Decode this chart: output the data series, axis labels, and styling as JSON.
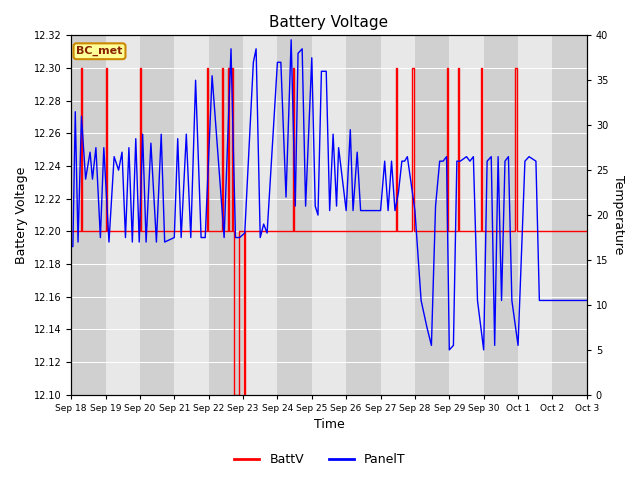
{
  "title": "Battery Voltage",
  "xlabel": "Time",
  "ylabel_left": "Battery Voltage",
  "ylabel_right": "Temperature",
  "ylim_left": [
    12.1,
    12.32
  ],
  "ylim_right": [
    0,
    40
  ],
  "background_color": "#ffffff",
  "band_colors": [
    "#d0d0d0",
    "#e8e8e8"
  ],
  "grid_color": "#ffffff",
  "box_label": "BC_met",
  "box_facecolor": "#ffff99",
  "box_edgecolor": "#cc8800",
  "box_textcolor": "#882200",
  "legend_items": [
    "BattV",
    "PanelT"
  ],
  "batt_color": "#ff0000",
  "panel_color": "#0000ff",
  "x_tick_labels": [
    "Sep 18",
    "Sep 19",
    "Sep 20",
    "Sep 21",
    "Sep 22",
    "Sep 23",
    "Sep 24",
    "Sep 25",
    "Sep 26",
    "Sep 27",
    "Sep 28",
    "Sep 29",
    "Sep 30",
    "Oct 1",
    "Oct 2",
    "Oct 3"
  ],
  "batt_data": [
    [
      18.0,
      12.2
    ],
    [
      18.0,
      12.2
    ],
    [
      18.28,
      12.2
    ],
    [
      18.28,
      12.3
    ],
    [
      18.32,
      12.3
    ],
    [
      18.32,
      12.2
    ],
    [
      19.0,
      12.2
    ],
    [
      19.0,
      12.3
    ],
    [
      19.04,
      12.3
    ],
    [
      19.04,
      12.2
    ],
    [
      20.0,
      12.2
    ],
    [
      20.0,
      12.3
    ],
    [
      20.04,
      12.3
    ],
    [
      20.04,
      12.2
    ],
    [
      21.95,
      12.2
    ],
    [
      21.95,
      12.3
    ],
    [
      21.99,
      12.3
    ],
    [
      21.99,
      12.2
    ],
    [
      22.38,
      12.2
    ],
    [
      22.38,
      12.3
    ],
    [
      22.42,
      12.3
    ],
    [
      22.42,
      12.2
    ],
    [
      22.56,
      12.2
    ],
    [
      22.56,
      12.3
    ],
    [
      22.6,
      12.3
    ],
    [
      22.6,
      12.2
    ],
    [
      22.68,
      12.2
    ],
    [
      22.68,
      12.3
    ],
    [
      22.72,
      12.3
    ],
    [
      22.72,
      12.2
    ],
    [
      22.75,
      12.2
    ],
    [
      22.75,
      12.1
    ],
    [
      22.88,
      12.1
    ],
    [
      22.88,
      12.2
    ],
    [
      23.02,
      12.2
    ],
    [
      23.02,
      12.1
    ],
    [
      23.06,
      12.1
    ],
    [
      23.06,
      12.2
    ],
    [
      24.45,
      12.2
    ],
    [
      24.45,
      12.3
    ],
    [
      24.49,
      12.3
    ],
    [
      24.49,
      12.2
    ],
    [
      27.45,
      12.2
    ],
    [
      27.45,
      12.3
    ],
    [
      27.49,
      12.3
    ],
    [
      27.49,
      12.2
    ],
    [
      27.92,
      12.2
    ],
    [
      27.92,
      12.3
    ],
    [
      27.96,
      12.3
    ],
    [
      27.96,
      12.2
    ],
    [
      28.92,
      12.2
    ],
    [
      28.92,
      12.3
    ],
    [
      28.96,
      12.3
    ],
    [
      28.96,
      12.2
    ],
    [
      29.25,
      12.2
    ],
    [
      29.25,
      12.3
    ],
    [
      29.29,
      12.3
    ],
    [
      29.29,
      12.2
    ],
    [
      29.92,
      12.2
    ],
    [
      29.92,
      12.3
    ],
    [
      29.96,
      12.3
    ],
    [
      29.96,
      12.2
    ],
    [
      30.92,
      12.2
    ],
    [
      30.92,
      12.3
    ],
    [
      30.96,
      12.3
    ],
    [
      30.96,
      12.2
    ],
    [
      33.0,
      12.2
    ]
  ],
  "panel_data": [
    [
      18.0,
      16.5
    ],
    [
      18.05,
      16.5
    ],
    [
      18.12,
      31.5
    ],
    [
      18.2,
      17.0
    ],
    [
      18.3,
      31.0
    ],
    [
      18.42,
      24.0
    ],
    [
      18.55,
      27.0
    ],
    [
      18.62,
      24.0
    ],
    [
      18.72,
      27.5
    ],
    [
      18.85,
      17.5
    ],
    [
      18.95,
      27.5
    ],
    [
      19.1,
      17.0
    ],
    [
      19.25,
      26.5
    ],
    [
      19.38,
      25.0
    ],
    [
      19.48,
      27.0
    ],
    [
      19.58,
      17.5
    ],
    [
      19.68,
      27.5
    ],
    [
      19.78,
      17.0
    ],
    [
      19.88,
      28.5
    ],
    [
      19.98,
      17.0
    ],
    [
      20.08,
      29.0
    ],
    [
      20.18,
      17.0
    ],
    [
      20.32,
      28.0
    ],
    [
      20.48,
      17.0
    ],
    [
      20.62,
      29.0
    ],
    [
      20.72,
      17.0
    ],
    [
      21.0,
      17.5
    ],
    [
      21.1,
      28.5
    ],
    [
      21.2,
      17.5
    ],
    [
      21.35,
      29.0
    ],
    [
      21.48,
      17.5
    ],
    [
      21.62,
      35.0
    ],
    [
      21.78,
      17.5
    ],
    [
      21.9,
      17.5
    ],
    [
      22.1,
      35.5
    ],
    [
      22.45,
      17.5
    ],
    [
      22.65,
      38.5
    ],
    [
      22.78,
      17.5
    ],
    [
      22.82,
      17.5
    ],
    [
      22.9,
      17.5
    ],
    [
      23.05,
      18.0
    ],
    [
      23.3,
      37.0
    ],
    [
      23.38,
      38.5
    ],
    [
      23.5,
      17.5
    ],
    [
      23.6,
      19.0
    ],
    [
      23.7,
      18.0
    ],
    [
      24.0,
      37.0
    ],
    [
      24.1,
      37.0
    ],
    [
      24.25,
      22.0
    ],
    [
      24.4,
      39.5
    ],
    [
      24.52,
      21.0
    ],
    [
      24.6,
      38.0
    ],
    [
      24.72,
      38.5
    ],
    [
      24.82,
      21.0
    ],
    [
      25.0,
      37.5
    ],
    [
      25.1,
      21.0
    ],
    [
      25.18,
      20.0
    ],
    [
      25.28,
      36.0
    ],
    [
      25.42,
      36.0
    ],
    [
      25.52,
      20.5
    ],
    [
      25.62,
      29.0
    ],
    [
      25.72,
      21.0
    ],
    [
      25.78,
      27.5
    ],
    [
      26.0,
      20.5
    ],
    [
      26.12,
      29.5
    ],
    [
      26.2,
      20.5
    ],
    [
      26.32,
      27.0
    ],
    [
      26.42,
      20.5
    ],
    [
      27.0,
      20.5
    ],
    [
      27.12,
      26.0
    ],
    [
      27.22,
      20.5
    ],
    [
      27.32,
      26.0
    ],
    [
      27.42,
      20.5
    ],
    [
      27.52,
      22.5
    ],
    [
      27.62,
      26.0
    ],
    [
      27.7,
      26.0
    ],
    [
      27.78,
      26.5
    ],
    [
      28.0,
      20.5
    ],
    [
      28.18,
      10.5
    ],
    [
      28.35,
      7.5
    ],
    [
      28.48,
      5.5
    ],
    [
      28.6,
      21.0
    ],
    [
      28.72,
      26.0
    ],
    [
      28.82,
      26.0
    ],
    [
      28.92,
      26.5
    ],
    [
      29.0,
      5.0
    ],
    [
      29.12,
      5.5
    ],
    [
      29.22,
      26.0
    ],
    [
      29.32,
      26.0
    ],
    [
      29.5,
      26.5
    ],
    [
      29.6,
      26.0
    ],
    [
      29.7,
      26.5
    ],
    [
      29.82,
      10.5
    ],
    [
      30.0,
      5.0
    ],
    [
      30.1,
      26.0
    ],
    [
      30.22,
      26.5
    ],
    [
      30.32,
      5.5
    ],
    [
      30.42,
      26.5
    ],
    [
      30.52,
      10.5
    ],
    [
      30.62,
      26.0
    ],
    [
      30.72,
      26.5
    ],
    [
      30.82,
      10.5
    ],
    [
      31.0,
      5.5
    ],
    [
      31.2,
      26.0
    ],
    [
      31.32,
      26.5
    ],
    [
      31.52,
      26.0
    ],
    [
      31.62,
      10.5
    ],
    [
      33.0,
      10.5
    ]
  ]
}
